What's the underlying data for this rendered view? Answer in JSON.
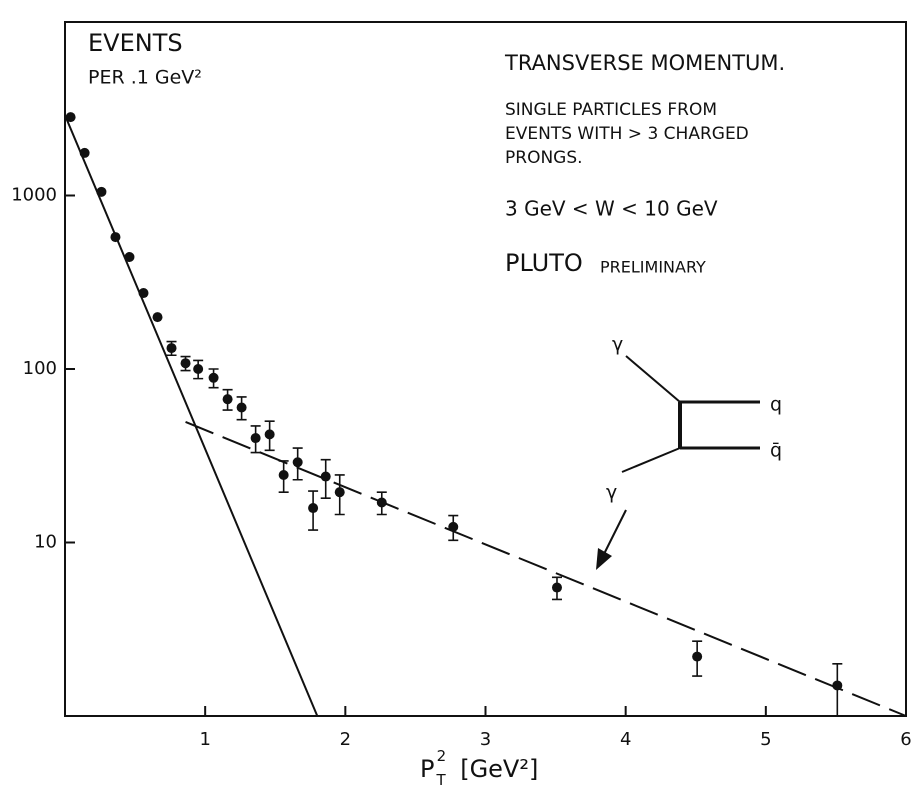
{
  "chart_data": {
    "type": "scatter",
    "log_y": true,
    "color": "#111111",
    "xlim": [
      0,
      6
    ],
    "ylim": [
      1,
      10000
    ],
    "xticks": [
      1,
      2,
      3,
      4,
      5,
      6
    ],
    "yticks": [
      10,
      100,
      1000
    ],
    "y_label": [
      "EVENTS",
      "PER .1 GeV²"
    ],
    "x_label": {
      "symbol": "P",
      "subscript": "T",
      "superscript": "2",
      "unit": "[GeV²]"
    },
    "annotations": {
      "title": "TRANSVERSE MOMENTUM.",
      "selection": [
        "SINGLE PARTICLES FROM",
        "EVENTS WITH > 3 CHARGED",
        "PRONGS."
      ],
      "range": "3 GeV < W < 10 GeV",
      "experiment": "PLUTO",
      "status": "PRELIMINARY"
    },
    "diagram": {
      "photon_top": "γ",
      "photon_bottom": "γ",
      "quark": "q",
      "antiquark": "q̄"
    },
    "series": [
      {
        "x": [
          0.04,
          0.14,
          0.26,
          0.36,
          0.46,
          0.56,
          0.66,
          0.76,
          0.86,
          0.95,
          1.06,
          1.16,
          1.26,
          1.36,
          1.46,
          1.56,
          1.66,
          1.77,
          1.86,
          1.96,
          2.26,
          2.77,
          3.51,
          4.51,
          5.51
        ],
        "values": [
          2830,
          1760,
          1050,
          576,
          442,
          274,
          199,
          132,
          108,
          100,
          89,
          67,
          60,
          40,
          42,
          24.5,
          29,
          15.8,
          24,
          19.5,
          17,
          12.3,
          5.5,
          2.2,
          1.5
        ],
        "errors": [
          0,
          0,
          0,
          0,
          0,
          0,
          0,
          12,
          10,
          12,
          11,
          9,
          9,
          7,
          8,
          5,
          6,
          4,
          6,
          5,
          2.5,
          2,
          0.8,
          0.5,
          0.5
        ]
      }
    ],
    "lines": [
      {
        "x": [
          0,
          1.8
        ],
        "values": [
          2900,
          1
        ],
        "style": "solid"
      },
      {
        "x": [
          0.86,
          6
        ],
        "values": [
          49.5,
          1
        ],
        "style": "dashed"
      }
    ]
  }
}
